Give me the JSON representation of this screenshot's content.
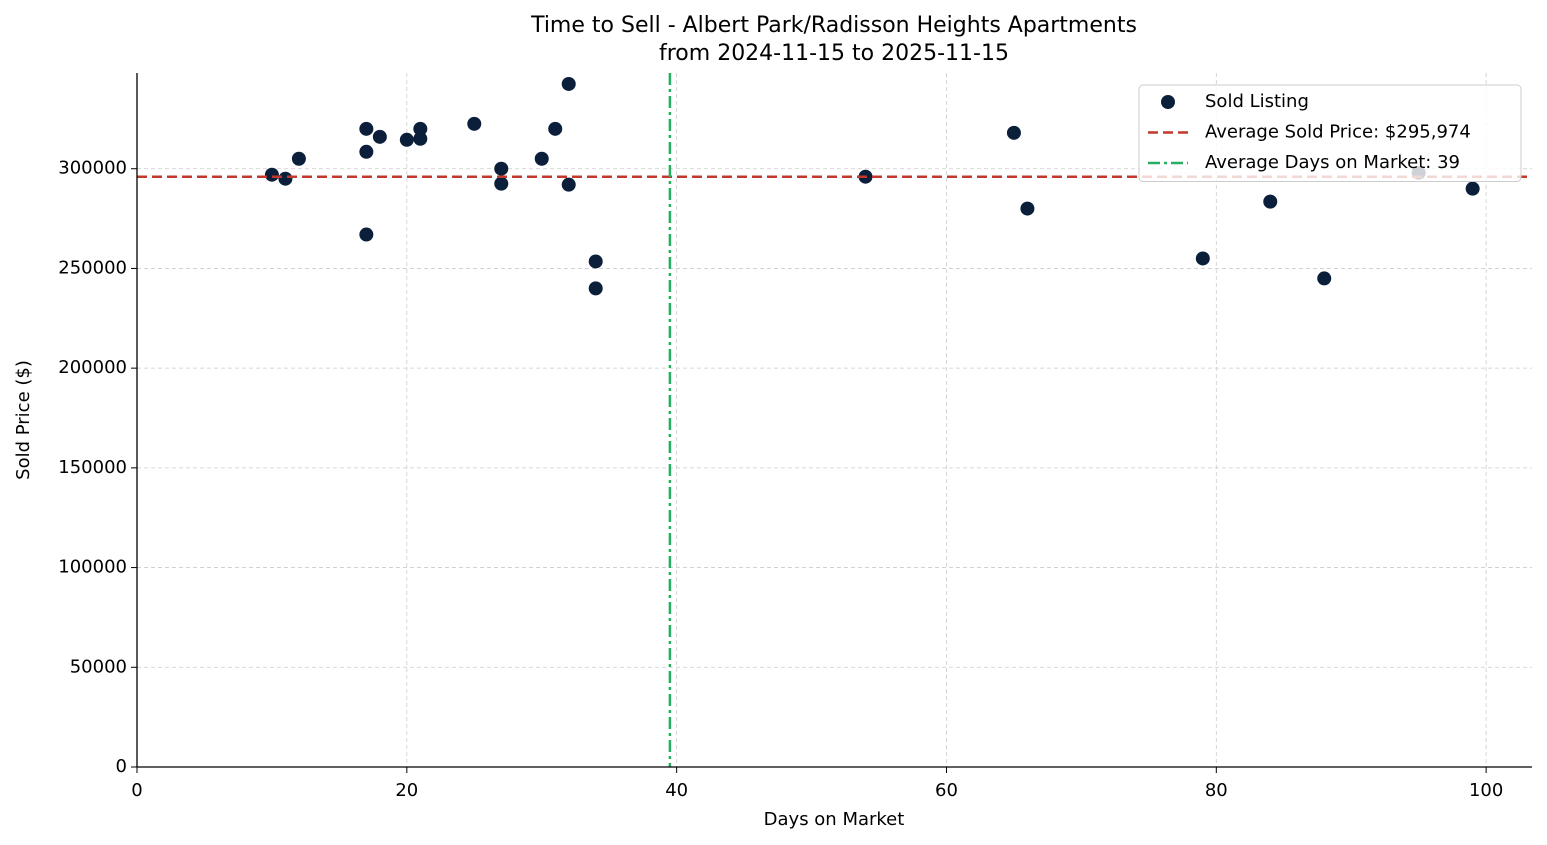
{
  "chart_data": {
    "type": "scatter",
    "title": "Time to Sell - Albert Park/Radisson Heights Apartments",
    "subtitle": "from 2024-11-15 to 2025-11-15",
    "xlabel": "Days on Market",
    "ylabel": "Sold Price ($)",
    "xlim": [
      0,
      103.4
    ],
    "ylim": [
      0,
      348000
    ],
    "xticks": [
      0,
      20,
      40,
      60,
      80,
      100
    ],
    "yticks": [
      0,
      50000,
      100000,
      150000,
      200000,
      250000,
      300000
    ],
    "grid": true,
    "legend": "upper right",
    "series": [
      {
        "name": "Sold Listing",
        "color": "#0b1f3a",
        "x": [
          10,
          11,
          12,
          17,
          17,
          17,
          18,
          20,
          21,
          21,
          25,
          27,
          27,
          30,
          31,
          32,
          32,
          34,
          34,
          54,
          65,
          66,
          79,
          84,
          88,
          95,
          99
        ],
        "values": [
          297000,
          295000,
          305000,
          320000,
          308500,
          267000,
          316000,
          314500,
          320000,
          315000,
          322500,
          300000,
          292500,
          305000,
          320000,
          342500,
          292000,
          253500,
          240000,
          296000,
          318000,
          280000,
          255000,
          283500,
          245000,
          298000,
          290000
        ]
      }
    ],
    "reference_lines": [
      {
        "name": "Average Sold Price: $295,974",
        "color": "#c0392b",
        "axis": "y",
        "value": 295974,
        "style": "dashed"
      },
      {
        "name": "Average Days on Market: 39",
        "color": "#27ae60",
        "axis": "x",
        "value": 39.5,
        "style": "dashdot"
      }
    ]
  }
}
